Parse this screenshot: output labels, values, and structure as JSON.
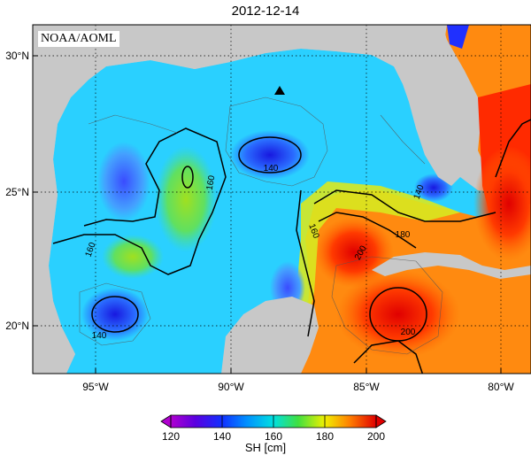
{
  "title": "2012-12-14",
  "credit": "NOAA/AOML",
  "colorbar": {
    "ticks": [
      "120",
      "140",
      "160",
      "180",
      "200"
    ],
    "label": "SH [cm]"
  },
  "axes": {
    "y_ticks": [
      "30°N",
      "25°N",
      "20°N"
    ],
    "x_ticks": [
      "95°W",
      "90°W",
      "85°W",
      "80°W"
    ]
  },
  "contour_labels": [
    "140",
    "160",
    "160",
    "180",
    "200",
    "200",
    "160",
    "160",
    "140",
    "140"
  ],
  "colors": {
    "land": "#c8c8c8",
    "ocean_low": "#1a1aff",
    "ocean_mid": "#00c8ff",
    "ocean_high": "#ff2000"
  },
  "icons": [
    "station-triangle-icon"
  ]
}
